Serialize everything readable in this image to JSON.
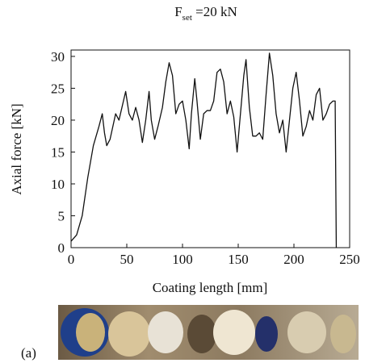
{
  "chart_data": {
    "type": "line",
    "title": {
      "main": "F",
      "subscript": "set",
      "rest": " =20 kN"
    },
    "x_label": "Coating length [mm]",
    "y_label": "Axial force [kN]",
    "panel_label": "(a)",
    "color": "#111111",
    "x": [
      0,
      5,
      10,
      15,
      20,
      25,
      28,
      30,
      32,
      35,
      40,
      43,
      47,
      49,
      52,
      55,
      58,
      61,
      64,
      67,
      70,
      72,
      75,
      78,
      82,
      85,
      88,
      91,
      94,
      97,
      100,
      103,
      106,
      108,
      111,
      113,
      116,
      119,
      122,
      125,
      128,
      131,
      134,
      137,
      140,
      143,
      146,
      149,
      152,
      155,
      157,
      160,
      163,
      166,
      169,
      172,
      175,
      178,
      181,
      184,
      187,
      190,
      193,
      196,
      199,
      202,
      205,
      208,
      211,
      214,
      217,
      220,
      223,
      226,
      229,
      232,
      235,
      237,
      238
    ],
    "values": [
      1,
      2,
      5,
      11,
      16,
      19,
      21,
      18,
      16,
      17,
      21,
      20,
      23,
      24.5,
      21,
      20,
      22,
      20,
      16.5,
      20,
      24.5,
      20,
      17,
      19,
      22,
      26,
      29,
      27,
      21,
      22.5,
      23,
      20,
      15.5,
      21,
      26.5,
      23,
      17,
      21,
      21.5,
      21.5,
      23,
      27.5,
      28,
      26,
      21,
      23,
      20.5,
      15,
      21,
      27,
      29.5,
      22,
      17.5,
      17.5,
      18,
      17,
      24,
      30.5,
      27,
      21,
      18,
      20,
      15,
      20,
      25,
      27.5,
      23,
      17.5,
      19,
      21.5,
      20,
      24,
      25,
      20,
      21,
      22.5,
      23,
      23,
      0
    ],
    "xlim": [
      0,
      250
    ],
    "ylim": [
      0,
      31
    ],
    "xticks": [
      0,
      50,
      100,
      150,
      200,
      250
    ],
    "yticks": [
      0,
      5,
      10,
      15,
      20,
      25,
      30
    ]
  }
}
